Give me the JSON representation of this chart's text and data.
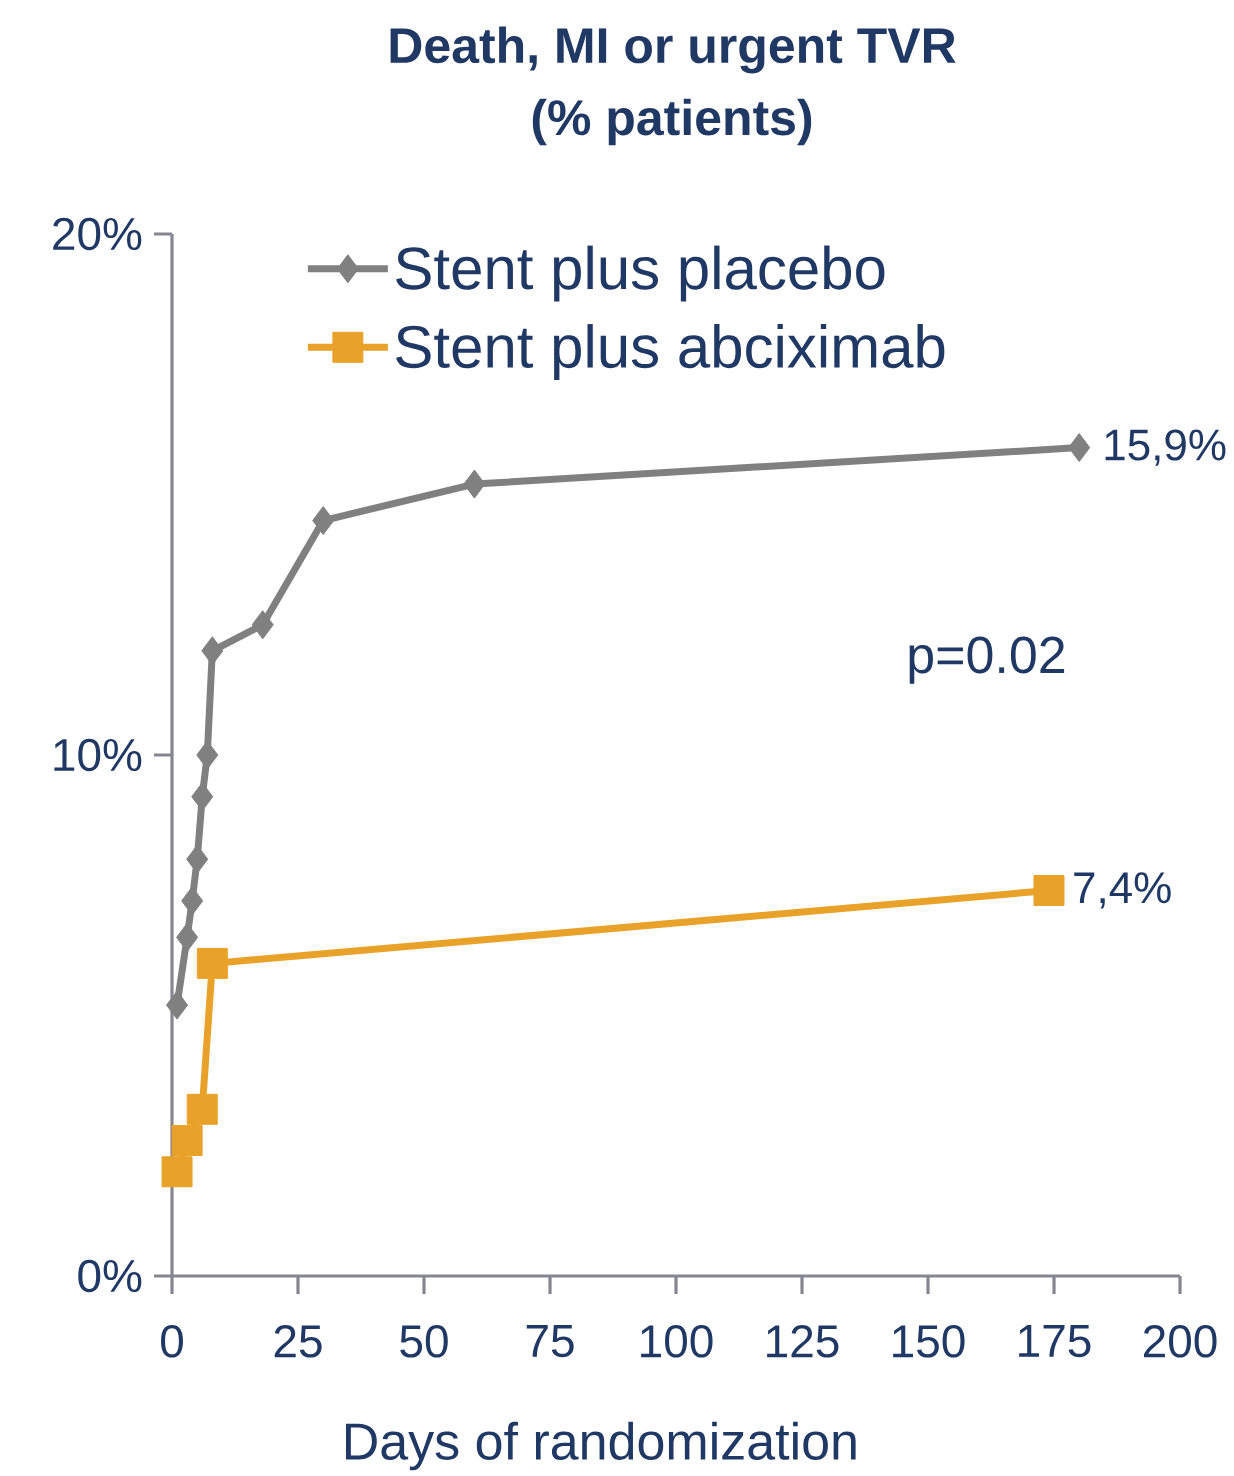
{
  "chart_data": {
    "type": "line",
    "title": "Death, MI or urgent TVR",
    "subtitle": "(% patients)",
    "xlabel": "Days of randomization",
    "annotations": [
      "p=0.02"
    ],
    "xlim": [
      0,
      200
    ],
    "ylim": [
      0,
      20
    ],
    "xticks": [
      0,
      25,
      50,
      75,
      100,
      125,
      150,
      175,
      200
    ],
    "yticks": [
      {
        "value": 0,
        "label": "0%"
      },
      {
        "value": 10,
        "label": "10%"
      },
      {
        "value": 20,
        "label": "20%"
      }
    ],
    "legend": "top left",
    "line_style": "solid",
    "series": [
      {
        "name": "Stent plus placebo",
        "color": "#808080",
        "marker": "diamond",
        "x": [
          1,
          3,
          4,
          5,
          6,
          7,
          8,
          18,
          30,
          60,
          180
        ],
        "values": [
          5.2,
          6.5,
          7.2,
          8.0,
          9.2,
          10.0,
          12.0,
          12.5,
          14.5,
          15.2,
          15.9
        ],
        "value_labels": [
          null,
          null,
          null,
          null,
          null,
          null,
          null,
          null,
          null,
          null,
          "15,9%"
        ]
      },
      {
        "name": "Stent plus abciximab",
        "color": "#e9a229",
        "marker": "square",
        "x": [
          1,
          3,
          6,
          8,
          174
        ],
        "values": [
          2.0,
          2.6,
          3.2,
          6.0,
          7.4
        ],
        "value_labels": [
          null,
          null,
          null,
          null,
          "7,4%"
        ]
      }
    ]
  }
}
